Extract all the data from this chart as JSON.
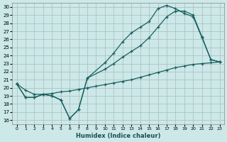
{
  "xlabel": "Humidex (Indice chaleur)",
  "background_color": "#cce8e8",
  "grid_color": "#aabbbb",
  "line_color": "#1a6060",
  "xlim": [
    -0.5,
    23.5
  ],
  "ylim": [
    15.5,
    30.5
  ],
  "xticks": [
    0,
    1,
    2,
    3,
    4,
    5,
    6,
    7,
    8,
    9,
    10,
    11,
    12,
    13,
    14,
    15,
    16,
    17,
    18,
    19,
    20,
    21,
    22,
    23
  ],
  "yticks": [
    16,
    17,
    18,
    19,
    20,
    21,
    22,
    23,
    24,
    25,
    26,
    27,
    28,
    29,
    30
  ],
  "curve1_x": [
    0,
    1,
    2,
    3,
    4,
    5,
    6,
    7,
    8,
    10,
    11,
    12,
    13,
    14,
    15,
    16,
    17,
    18,
    19,
    20,
    21,
    22,
    23
  ],
  "curve1_y": [
    20.5,
    18.8,
    18.8,
    19.2,
    19.0,
    18.5,
    16.2,
    17.3,
    21.2,
    23.1,
    24.3,
    25.7,
    26.8,
    27.5,
    28.2,
    29.8,
    30.2,
    29.8,
    29.2,
    28.8,
    26.2,
    23.5,
    23.2
  ],
  "curve2_x": [
    0,
    1,
    2,
    3,
    4,
    5,
    6,
    7,
    8,
    10,
    11,
    12,
    13,
    14,
    15,
    16,
    17,
    18,
    19,
    20,
    21,
    22,
    23
  ],
  "curve2_y": [
    20.5,
    18.8,
    18.8,
    19.2,
    19.0,
    18.5,
    16.2,
    17.3,
    21.2,
    22.3,
    23.0,
    23.8,
    24.5,
    25.2,
    26.2,
    27.5,
    28.8,
    29.5,
    29.5,
    29.0,
    26.3,
    23.5,
    23.2
  ],
  "line3_x": [
    0,
    1,
    2,
    3,
    4,
    5,
    6,
    7,
    8,
    9,
    10,
    11,
    12,
    13,
    14,
    15,
    16,
    17,
    18,
    19,
    20,
    21,
    22,
    23
  ],
  "line3_y": [
    20.5,
    19.7,
    19.2,
    19.2,
    19.3,
    19.5,
    19.6,
    19.8,
    20.0,
    20.2,
    20.4,
    20.6,
    20.8,
    21.0,
    21.3,
    21.6,
    21.9,
    22.2,
    22.5,
    22.7,
    22.9,
    23.0,
    23.1,
    23.2
  ]
}
